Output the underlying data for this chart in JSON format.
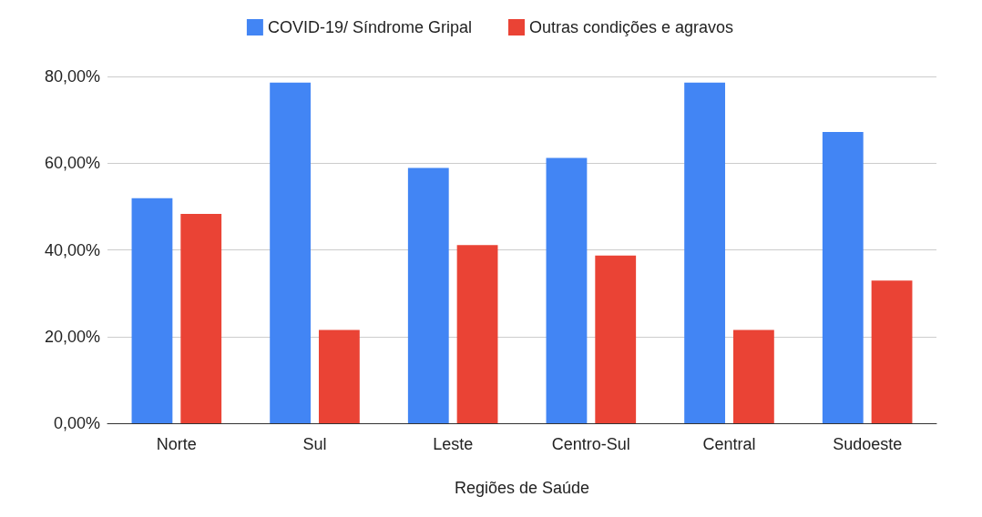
{
  "chart_data": {
    "type": "bar",
    "xlabel": "Regiões de Saúde",
    "categories": [
      "Norte",
      "Sul",
      "Leste",
      "Centro-Sul",
      "Central",
      "Sudoeste"
    ],
    "series": [
      {
        "name": "COVID-19/ Síndrome Gripal",
        "color": "#4285f4",
        "values": [
          51.9,
          78.6,
          58.9,
          61.2,
          78.6,
          67.2
        ]
      },
      {
        "name": "Outras condições e agravos",
        "color": "#ea4335",
        "values": [
          48.3,
          21.5,
          41.1,
          38.7,
          21.5,
          32.9
        ]
      }
    ],
    "ylim": [
      0,
      80
    ],
    "yticks": [
      {
        "value": 0,
        "label": "0,00%"
      },
      {
        "value": 20,
        "label": "20,00%"
      },
      {
        "value": 40,
        "label": "40,00%"
      },
      {
        "value": 60,
        "label": "60,00%"
      },
      {
        "value": 80,
        "label": "80,00%"
      }
    ],
    "grid": "y",
    "legend": "top"
  }
}
